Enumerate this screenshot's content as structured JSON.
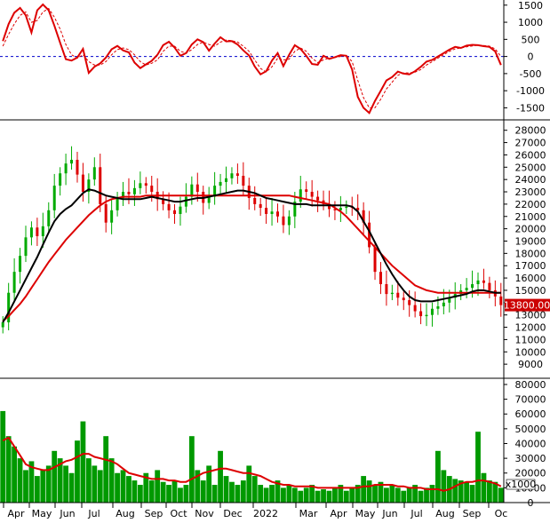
{
  "chart_data": [
    {
      "type": "line",
      "panel": "oscillator",
      "ylim": [
        -1800,
        1650
      ],
      "y_ticks": [
        1500,
        1000,
        500,
        0,
        -500,
        -1000,
        -1500
      ],
      "y_tick_labels": [
        "1500",
        "1000",
        "500",
        "0",
        "-500",
        "-1000",
        "-1500"
      ],
      "zero_line": {
        "value": 0,
        "style": "dashed",
        "color": "#0000cc"
      },
      "series": [
        {
          "color": "#dd0000",
          "style": "solid",
          "values": [
            450,
            950,
            1280,
            1420,
            1200,
            700,
            1350,
            1520,
            1350,
            900,
            400,
            -80,
            -120,
            -30,
            220,
            -480,
            -300,
            -200,
            -30,
            210,
            310,
            180,
            120,
            -180,
            -340,
            -230,
            -130,
            50,
            330,
            430,
            260,
            20,
            100,
            350,
            500,
            420,
            170,
            380,
            560,
            440,
            450,
            350,
            180,
            30,
            -290,
            -520,
            -430,
            -120,
            100,
            -280,
            50,
            330,
            220,
            20,
            -220,
            -240,
            20,
            -70,
            -20,
            40,
            20,
            -380,
            -1180,
            -1500,
            -1650,
            -1300,
            -1000,
            -700,
            -600,
            -440,
            -500,
            -520,
            -430,
            -300,
            -150,
            -100,
            0,
            100,
            200,
            280,
            250,
            320,
            340,
            330,
            300,
            280,
            150,
            -250
          ]
        },
        {
          "color": "#dd0000",
          "style": "dashed",
          "values": [
            300,
            650,
            950,
            1200,
            1300,
            1000,
            1050,
            1300,
            1400,
            1150,
            800,
            350,
            50,
            -50,
            50,
            -150,
            -250,
            -250,
            -150,
            50,
            200,
            250,
            200,
            50,
            -150,
            -250,
            -200,
            -100,
            150,
            300,
            300,
            150,
            100,
            200,
            350,
            420,
            350,
            300,
            420,
            480,
            460,
            420,
            300,
            150,
            -100,
            -350,
            -450,
            -300,
            -50,
            -100,
            -80,
            150,
            250,
            150,
            -50,
            -180,
            -100,
            -50,
            -30,
            0,
            30,
            -150,
            -700,
            -1200,
            -1500,
            -1500,
            -1250,
            -950,
            -750,
            -550,
            -480,
            -480,
            -460,
            -380,
            -250,
            -150,
            -50,
            50,
            150,
            220,
            250,
            280,
            310,
            330,
            320,
            300,
            220,
            0
          ]
        }
      ]
    },
    {
      "type": "bar",
      "panel": "price",
      "ylim": [
        8000,
        28700
      ],
      "y_ticks": [
        28000,
        27000,
        26000,
        25000,
        24000,
        23000,
        22000,
        21000,
        20000,
        19000,
        18000,
        17000,
        16000,
        15000,
        14000,
        13000,
        12000,
        11000,
        10000,
        9000
      ],
      "y_tick_labels": [
        "28000",
        "27000",
        "26000",
        "25000",
        "24000",
        "23000",
        "22000",
        "21000",
        "20000",
        "19000",
        "18000",
        "17000",
        "16000",
        "15000",
        "",
        "13000",
        "12000",
        "11000",
        "10000",
        "9000"
      ],
      "last_price": {
        "value": 13800,
        "label": "13800.00",
        "color": "#cc0000"
      },
      "up_color": "#00aa00",
      "down_color": "#dd0000",
      "closes": [
        12400,
        14800,
        16500,
        17800,
        19300,
        20100,
        19400,
        20200,
        21500,
        23500,
        24500,
        25300,
        25600,
        24400,
        23000,
        24000,
        25000,
        22000,
        20500,
        21500,
        22500,
        23000,
        22800,
        23300,
        23700,
        23500,
        23000,
        22400,
        22000,
        21500,
        21200,
        21800,
        22600,
        23600,
        23000,
        22100,
        22600,
        23500,
        23800,
        24100,
        24500,
        24300,
        23500,
        22500,
        22000,
        21700,
        21200,
        21400,
        21000,
        20300,
        21000,
        22200,
        23200,
        23000,
        22600,
        22300,
        22000,
        21600,
        21500,
        21700,
        21800,
        21700,
        21500,
        20500,
        18500,
        16500,
        15500,
        14700,
        14800,
        14400,
        14200,
        13800,
        13300,
        12900,
        13000,
        13500,
        13700,
        14000,
        14400,
        14700,
        15000,
        15200,
        15500,
        15800,
        15600,
        15000,
        14500,
        13800
      ],
      "series": [
        {
          "color": "#000000",
          "values": [
            12400,
            13200,
            14100,
            15000,
            15900,
            16800,
            17700,
            18700,
            19700,
            20600,
            21200,
            21600,
            21900,
            22400,
            22900,
            23200,
            23100,
            22900,
            22700,
            22600,
            22500,
            22400,
            22400,
            22400,
            22400,
            22500,
            22600,
            22500,
            22400,
            22300,
            22200,
            22200,
            22300,
            22400,
            22500,
            22500,
            22600,
            22700,
            22800,
            22900,
            23000,
            23100,
            23100,
            23000,
            22900,
            22700,
            22500,
            22400,
            22300,
            22200,
            22100,
            22000,
            22000,
            22000,
            21900,
            21900,
            21900,
            21900,
            21900,
            21900,
            21900,
            21800,
            21400,
            20600,
            19800,
            18900,
            18000,
            17100,
            16300,
            15600,
            15000,
            14500,
            14200,
            14100,
            14100,
            14100,
            14200,
            14300,
            14400,
            14500,
            14600,
            14700,
            14900,
            15000,
            15000,
            14900,
            14800,
            14800
          ]
        },
        {
          "color": "#dd0000",
          "values": [
            12500,
            12900,
            13400,
            13900,
            14500,
            15200,
            15900,
            16600,
            17300,
            17900,
            18500,
            19100,
            19600,
            20100,
            20600,
            21100,
            21500,
            21900,
            22200,
            22400,
            22500,
            22600,
            22600,
            22600,
            22600,
            22700,
            22700,
            22700,
            22700,
            22700,
            22700,
            22700,
            22700,
            22700,
            22700,
            22700,
            22700,
            22700,
            22700,
            22700,
            22700,
            22700,
            22700,
            22700,
            22700,
            22700,
            22700,
            22700,
            22700,
            22700,
            22700,
            22600,
            22500,
            22400,
            22300,
            22200,
            22100,
            22000,
            21700,
            21400,
            21000,
            20500,
            20000,
            19500,
            19000,
            18500,
            18000,
            17500,
            17000,
            16600,
            16200,
            15800,
            15400,
            15200,
            15000,
            14900,
            14800,
            14800,
            14800,
            14800,
            14800,
            14800,
            14800,
            14800,
            14800,
            14800,
            14800,
            14800
          ]
        }
      ]
    },
    {
      "type": "bar",
      "panel": "volume",
      "ylim": [
        0,
        83000
      ],
      "y_ticks": [
        80000,
        70000,
        60000,
        50000,
        40000,
        30000,
        20000,
        10000,
        0
      ],
      "y_tick_labels": [
        "80000",
        "70000",
        "60000",
        "50000",
        "40000",
        "30000",
        "20000",
        "10000",
        "0"
      ],
      "unit_label": "x1000",
      "bar_color": "#009900",
      "values": [
        62000,
        45000,
        38000,
        30000,
        22000,
        28000,
        18000,
        22000,
        25000,
        35000,
        30000,
        25000,
        20000,
        42000,
        55000,
        30000,
        25000,
        22000,
        45000,
        30000,
        20000,
        22000,
        18000,
        15000,
        12000,
        20000,
        15000,
        22000,
        14000,
        12000,
        15000,
        10000,
        12000,
        45000,
        22000,
        15000,
        25000,
        12000,
        35000,
        18000,
        14000,
        12000,
        15000,
        25000,
        18000,
        12000,
        10000,
        12000,
        15000,
        10000,
        12000,
        10000,
        8000,
        10000,
        12000,
        8000,
        9000,
        8000,
        10000,
        12000,
        8000,
        10000,
        12000,
        18000,
        15000,
        12000,
        14000,
        10000,
        12000,
        10000,
        8000,
        10000,
        12000,
        8000,
        10000,
        12000,
        35000,
        22000,
        18000,
        16000,
        15000,
        14000,
        12000,
        48000,
        20000,
        15000,
        14000,
        10000
      ],
      "series": [
        {
          "color": "#dd0000",
          "values": [
            42000,
            44000,
            38000,
            32000,
            26000,
            24000,
            23000,
            22000,
            22000,
            24000,
            26000,
            28000,
            29000,
            31000,
            33000,
            33000,
            31000,
            30000,
            29000,
            28000,
            26000,
            23000,
            20000,
            19000,
            18000,
            17000,
            16000,
            16000,
            16000,
            15000,
            15000,
            14000,
            14000,
            16000,
            18000,
            20000,
            21000,
            22000,
            23000,
            23000,
            22000,
            21000,
            20000,
            20000,
            19000,
            18000,
            16000,
            14000,
            13000,
            12000,
            12000,
            11000,
            11000,
            11000,
            11000,
            10000,
            10000,
            10000,
            10000,
            10000,
            10000,
            10000,
            10000,
            11000,
            11000,
            12000,
            12000,
            12000,
            12000,
            11000,
            11000,
            10000,
            10000,
            10000,
            9000,
            9000,
            9000,
            8000,
            9000,
            11000,
            13000,
            14000,
            14000,
            15000,
            15000,
            14000,
            13000,
            11000
          ]
        }
      ]
    }
  ],
  "x_axis": {
    "labels": [
      "Apr",
      "May",
      "Jun",
      "Jul",
      "Aug",
      "Sep",
      "Oct",
      "Nov",
      "Dec",
      "2022",
      "Mar",
      "Apr",
      "May",
      "Jun",
      "Jul",
      "Aug",
      "Sep",
      "Oc"
    ]
  },
  "colors": {
    "background": "#ffffff",
    "axis": "#000000",
    "up_candle": "#00aa00",
    "down_candle": "#dd0000",
    "ma_fast": "#000000",
    "ma_slow": "#dd0000",
    "zero_line": "#0000cc",
    "volume": "#009900"
  }
}
